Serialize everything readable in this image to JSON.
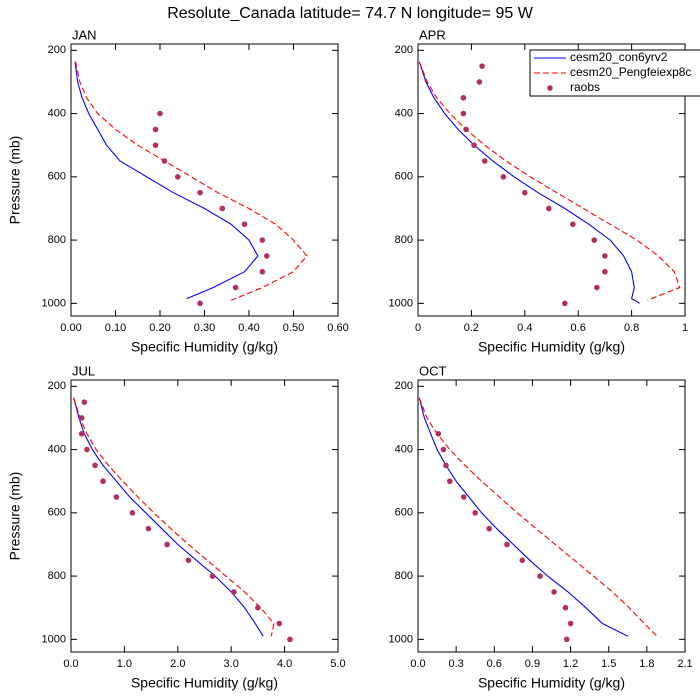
{
  "title": "Resolute_Canada  latitude= 74.7 N longitude= 95 W",
  "chart_data": [
    {
      "type": "line",
      "title": "JAN",
      "xlabel": "Specific Humidity (g/kg)",
      "ylabel": "Pressure (mb)",
      "xlim": [
        0,
        0.6
      ],
      "ylim": [
        1040,
        180
      ],
      "xticks": [
        {
          "value": 0,
          "label": "0.00"
        },
        {
          "value": 0.1,
          "label": "0.10"
        },
        {
          "value": 0.2,
          "label": "0.20"
        },
        {
          "value": 0.3,
          "label": "0.30"
        },
        {
          "value": 0.4,
          "label": "0.40"
        },
        {
          "value": 0.5,
          "label": "0.50"
        },
        {
          "value": 0.6,
          "label": "0.60"
        }
      ],
      "yticks": [
        200,
        400,
        600,
        800,
        1000
      ],
      "series": [
        {
          "color": "#0000ff",
          "style": "solid",
          "x": [
            0.009,
            0.015,
            0.025,
            0.04,
            0.06,
            0.08,
            0.11,
            0.17,
            0.23,
            0.3,
            0.36,
            0.4,
            0.42,
            0.39,
            0.32,
            0.26
          ],
          "y": [
            236,
            300,
            350,
            400,
            450,
            500,
            550,
            600,
            650,
            700,
            750,
            800,
            850,
            900,
            950,
            985
          ]
        },
        {
          "color": "#ff0000",
          "style": "dashed",
          "x": [
            0.01,
            0.02,
            0.035,
            0.06,
            0.1,
            0.15,
            0.21,
            0.27,
            0.33,
            0.4,
            0.46,
            0.5,
            0.53,
            0.5,
            0.43,
            0.36
          ],
          "y": [
            236,
            300,
            350,
            400,
            450,
            500,
            550,
            600,
            650,
            700,
            750,
            800,
            850,
            900,
            950,
            990
          ]
        },
        {
          "color": "#b03060",
          "style": "dots",
          "x": [
            0.2,
            0.19,
            0.19,
            0.21,
            0.24,
            0.29,
            0.34,
            0.39,
            0.43,
            0.44,
            0.43,
            0.37,
            0.29
          ],
          "y": [
            400,
            450,
            500,
            550,
            600,
            650,
            700,
            750,
            800,
            850,
            900,
            950,
            1000
          ]
        }
      ]
    },
    {
      "type": "line",
      "title": "APR",
      "xlabel": "Specific Humidity (g/kg)",
      "xlim": [
        0,
        1
      ],
      "ylim": [
        1040,
        180
      ],
      "xticks": [
        0,
        0.2,
        0.4,
        0.6,
        0.8,
        1
      ],
      "yticks": [
        200,
        400,
        600,
        800,
        1000
      ],
      "series": [
        {
          "name": "cesm20_con6yrv2",
          "color": "#0000ff",
          "style": "solid",
          "x": [
            0.005,
            0.03,
            0.06,
            0.1,
            0.15,
            0.21,
            0.28,
            0.36,
            0.45,
            0.55,
            0.64,
            0.72,
            0.77,
            0.8,
            0.81,
            0.8,
            0.83
          ],
          "y": [
            236,
            300,
            350,
            400,
            450,
            500,
            550,
            600,
            650,
            700,
            750,
            800,
            850,
            900,
            950,
            985,
            1000
          ]
        },
        {
          "name": "cesm20_Pengfeiexp8c",
          "color": "#ff0000",
          "style": "dashed",
          "x": [
            0.005,
            0.035,
            0.07,
            0.12,
            0.18,
            0.25,
            0.33,
            0.42,
            0.52,
            0.62,
            0.72,
            0.82,
            0.9,
            0.96,
            0.98,
            0.86
          ],
          "y": [
            236,
            300,
            350,
            400,
            450,
            500,
            550,
            600,
            650,
            700,
            750,
            800,
            850,
            900,
            950,
            990
          ]
        },
        {
          "name": "raobs",
          "color": "#b03060",
          "style": "dots",
          "x": [
            0.24,
            0.23,
            0.17,
            0.17,
            0.18,
            0.21,
            0.25,
            0.32,
            0.4,
            0.49,
            0.58,
            0.66,
            0.7,
            0.7,
            0.67,
            0.55
          ],
          "y": [
            250,
            300,
            350,
            400,
            450,
            500,
            550,
            600,
            650,
            700,
            750,
            800,
            850,
            900,
            950,
            1000
          ]
        }
      ]
    },
    {
      "type": "line",
      "title": "JUL",
      "xlabel": "Specific Humidity (g/kg)",
      "ylabel": "Pressure (mb)",
      "xlim": [
        0,
        5
      ],
      "ylim": [
        1040,
        180
      ],
      "xticks": [
        {
          "value": 0,
          "label": "0.0"
        },
        {
          "value": 1,
          "label": "1.0"
        },
        {
          "value": 2,
          "label": "2.0"
        },
        {
          "value": 3,
          "label": "3.0"
        },
        {
          "value": 4,
          "label": "4.0"
        },
        {
          "value": 5,
          "label": "5.0"
        }
      ],
      "yticks": [
        200,
        400,
        600,
        800,
        1000
      ],
      "series": [
        {
          "color": "#0000ff",
          "style": "solid",
          "x": [
            0.05,
            0.15,
            0.25,
            0.4,
            0.6,
            0.85,
            1.1,
            1.4,
            1.7,
            2.0,
            2.35,
            2.7,
            3.0,
            3.25,
            3.45,
            3.6
          ],
          "y": [
            236,
            300,
            350,
            400,
            450,
            500,
            550,
            600,
            650,
            700,
            750,
            800,
            850,
            900,
            950,
            990
          ]
        },
        {
          "color": "#ff0000",
          "style": "dashed",
          "x": [
            0.05,
            0.17,
            0.3,
            0.47,
            0.7,
            0.97,
            1.25,
            1.55,
            1.87,
            2.2,
            2.55,
            2.9,
            3.25,
            3.55,
            3.8,
            3.75
          ],
          "y": [
            236,
            300,
            350,
            400,
            450,
            500,
            550,
            600,
            650,
            700,
            750,
            800,
            850,
            900,
            950,
            990
          ]
        },
        {
          "color": "#b03060",
          "style": "dots",
          "x": [
            0.25,
            0.2,
            0.2,
            0.3,
            0.45,
            0.6,
            0.85,
            1.15,
            1.45,
            1.8,
            2.2,
            2.65,
            3.05,
            3.5,
            3.9,
            4.1
          ],
          "y": [
            250,
            300,
            350,
            400,
            450,
            500,
            550,
            600,
            650,
            700,
            750,
            800,
            850,
            900,
            950,
            1000
          ]
        }
      ]
    },
    {
      "type": "line",
      "title": "OCT",
      "xlabel": "Specific Humidity (g/kg)",
      "xlim": [
        0,
        2.1
      ],
      "ylim": [
        1040,
        180
      ],
      "xticks": [
        {
          "value": 0,
          "label": "0.0"
        },
        0.3,
        0.6,
        0.9,
        1.2,
        1.5,
        1.8,
        2.1
      ],
      "yticks": [
        200,
        400,
        600,
        800,
        1000
      ],
      "series": [
        {
          "color": "#0000ff",
          "style": "solid",
          "x": [
            0.01,
            0.05,
            0.1,
            0.15,
            0.22,
            0.3,
            0.4,
            0.5,
            0.62,
            0.75,
            0.88,
            1.02,
            1.18,
            1.32,
            1.45,
            1.65
          ],
          "y": [
            236,
            300,
            350,
            400,
            450,
            500,
            550,
            600,
            650,
            700,
            750,
            800,
            850,
            900,
            950,
            990
          ]
        },
        {
          "color": "#ff0000",
          "style": "dashed",
          "x": [
            0.01,
            0.07,
            0.15,
            0.25,
            0.37,
            0.5,
            0.64,
            0.78,
            0.93,
            1.08,
            1.23,
            1.38,
            1.53,
            1.66,
            1.78,
            1.88
          ],
          "y": [
            236,
            300,
            350,
            400,
            450,
            500,
            550,
            600,
            650,
            700,
            750,
            800,
            850,
            900,
            950,
            990
          ]
        },
        {
          "color": "#b03060",
          "style": "dots",
          "x": [
            0.16,
            0.2,
            0.22,
            0.25,
            0.36,
            0.45,
            0.56,
            0.7,
            0.82,
            0.96,
            1.07,
            1.16,
            1.2,
            1.17
          ],
          "y": [
            350,
            400,
            450,
            500,
            550,
            600,
            650,
            700,
            750,
            800,
            850,
            900,
            950,
            1000
          ]
        }
      ]
    }
  ]
}
